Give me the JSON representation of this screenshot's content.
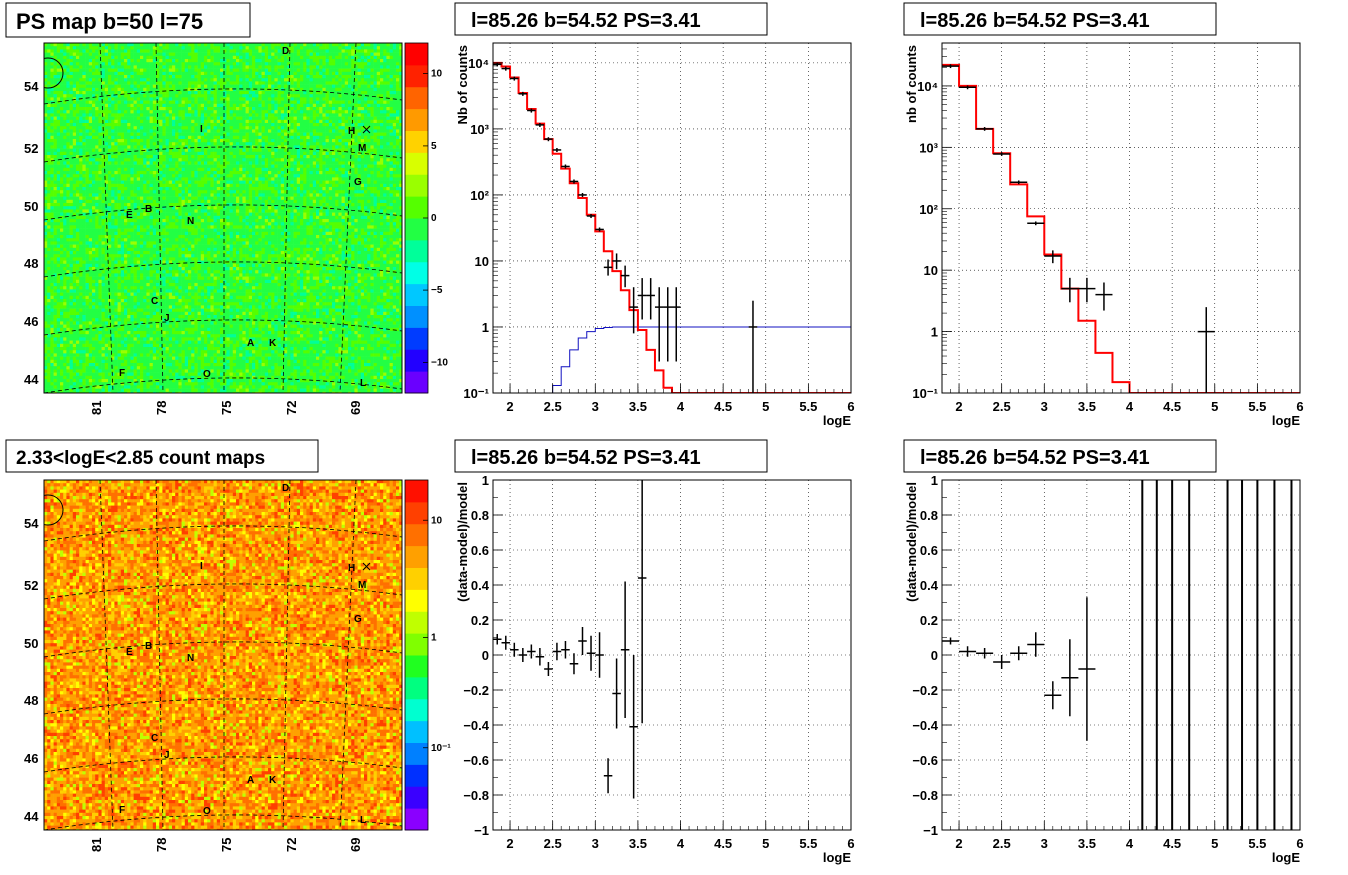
{
  "maps": [
    {
      "title": "PS map b=50 l=75",
      "kind": "ps",
      "colorbar_ticks": [
        {
          "label": "10",
          "frac": 0.913
        },
        {
          "label": "5",
          "frac": 0.706
        },
        {
          "label": "0",
          "frac": 0.5
        },
        {
          "label": "−5",
          "frac": 0.294
        },
        {
          "label": "−10",
          "frac": 0.087
        }
      ],
      "colors": [
        "#6a00ff",
        "#2200ff",
        "#003cff",
        "#0090ff",
        "#00c8ff",
        "#00ffe6",
        "#00ff9a",
        "#22ff44",
        "#55ff00",
        "#9aff00",
        "#d8ff00",
        "#ffd200",
        "#ff9a00",
        "#ff6400",
        "#ff2200",
        "#ff0000"
      ]
    },
    {
      "title": "2.33<logE<2.85 count maps",
      "kind": "counts",
      "colorbar_ticks": [
        {
          "label": "10",
          "frac": 0.885
        },
        {
          "label": "1",
          "frac": 0.55
        },
        {
          "label": "10⁻¹",
          "frac": 0.235
        }
      ],
      "colors": [
        "#8a00ff",
        "#3a00ff",
        "#0030ff",
        "#0080ff",
        "#00c0ff",
        "#00ffd0",
        "#00ff80",
        "#20ff20",
        "#80ff00",
        "#c0ff00",
        "#ffff00",
        "#ffd000",
        "#ffa000",
        "#ff7000",
        "#ff4000",
        "#ff1000"
      ]
    }
  ],
  "map_axes": {
    "lat_labels": [
      "54",
      "52",
      "50",
      "48",
      "46",
      "44"
    ],
    "lon_labels": [
      "81",
      "78",
      "75",
      "72",
      "69"
    ]
  },
  "sources": [
    "D",
    "I",
    "H",
    "M",
    "G",
    "E",
    "B",
    "N",
    "C",
    "J",
    "A",
    "K",
    "F",
    "O",
    "L"
  ],
  "chart_data": [
    {
      "type": "step",
      "title": "l=85.26 b=54.52 PS=3.41",
      "xlabel": "logE",
      "ylabel": "Nb of counts",
      "yscale": "log",
      "xlim": [
        1.8,
        6
      ],
      "ylim": [
        0.1,
        20000
      ],
      "xticks": [
        "2",
        "2.5",
        "3",
        "3.5",
        "4",
        "4.5",
        "5",
        "5.5",
        "6"
      ],
      "yticks": [
        "10⁴",
        "10³",
        "10²",
        "10",
        "1",
        "10⁻¹"
      ],
      "bin_edges": [
        1.8,
        1.9,
        2.0,
        2.1,
        2.2,
        2.3,
        2.4,
        2.5,
        2.6,
        2.7,
        2.8,
        2.9,
        3.0,
        3.1,
        3.2,
        3.3,
        3.4,
        3.5,
        3.6,
        3.7,
        3.8,
        3.9,
        4.0,
        4.1,
        4.2,
        4.3,
        4.4,
        4.5,
        4.6,
        4.7,
        4.8,
        4.9,
        5.0,
        5.1,
        5.2,
        5.3,
        5.4,
        5.5,
        5.6,
        5.7,
        5.8,
        5.9,
        6.0
      ],
      "model": [
        10000,
        8800,
        6000,
        3500,
        2000,
        1200,
        700,
        420,
        250,
        150,
        90,
        50,
        28,
        14,
        7,
        3.6,
        1.8,
        0.9,
        0.45,
        0.22,
        0.12,
        0.1,
        0.1,
        0.1,
        0.1,
        0.1,
        0.1,
        0.1,
        0.1,
        0.1,
        0.1,
        0.1,
        0.1,
        0.1,
        0.1,
        0.1,
        0.1,
        0.1,
        0.1,
        0.1,
        0.1,
        0.1
      ],
      "model2": [
        0.1,
        0.1,
        0.1,
        0.1,
        0.1,
        0.1,
        0.1,
        0.13,
        0.25,
        0.45,
        0.68,
        0.85,
        0.95,
        0.98,
        1,
        1,
        1,
        1,
        1,
        1,
        1,
        1,
        1,
        1,
        1,
        1,
        1,
        1,
        1,
        1,
        1,
        1,
        1,
        1,
        1,
        1,
        1,
        1,
        1,
        1,
        1,
        1
      ],
      "points": [
        {
          "x": 1.85,
          "y": 9500,
          "dx": 0.05
        },
        {
          "x": 1.95,
          "y": 8200,
          "dx": 0.05
        },
        {
          "x": 2.05,
          "y": 5800,
          "dx": 0.05
        },
        {
          "x": 2.15,
          "y": 3400,
          "dx": 0.05
        },
        {
          "x": 2.25,
          "y": 1900,
          "dx": 0.05
        },
        {
          "x": 2.35,
          "y": 1150,
          "dx": 0.05
        },
        {
          "x": 2.45,
          "y": 700,
          "dx": 0.05
        },
        {
          "x": 2.55,
          "y": 480,
          "dx": 0.05
        },
        {
          "x": 2.65,
          "y": 270,
          "dx": 0.05
        },
        {
          "x": 2.75,
          "y": 160,
          "dx": 0.05
        },
        {
          "x": 2.85,
          "y": 100,
          "dx": 0.05
        },
        {
          "x": 2.95,
          "y": 48,
          "dx": 0.05
        },
        {
          "x": 3.05,
          "y": 30,
          "dx": 0.05
        },
        {
          "x": 3.15,
          "y": 8,
          "dx": 0.05,
          "lo": 6,
          "hi": 10.5
        },
        {
          "x": 3.25,
          "y": 10,
          "dx": 0.05,
          "lo": 7.5,
          "hi": 13
        },
        {
          "x": 3.35,
          "y": 6,
          "dx": 0.05,
          "lo": 4,
          "hi": 8.5
        },
        {
          "x": 3.45,
          "y": 2,
          "dx": 0.05,
          "lo": 0.8,
          "hi": 4
        },
        {
          "x": 3.55,
          "y": 3,
          "dx": 0.05,
          "lo": 1.3,
          "hi": 5.5
        },
        {
          "x": 3.65,
          "y": 3,
          "dx": 0.05,
          "lo": 1.3,
          "hi": 5.5
        },
        {
          "x": 3.75,
          "y": 2,
          "dx": 0.05,
          "lo": 0.3,
          "hi": 4
        },
        {
          "x": 3.85,
          "y": 2,
          "dx": 0.05,
          "lo": 0.3,
          "hi": 4
        },
        {
          "x": 3.95,
          "y": 2,
          "dx": 0.05,
          "lo": 0.3,
          "hi": 4
        },
        {
          "x": 4.85,
          "y": 1,
          "dx": 0.05,
          "lo": 0.1,
          "hi": 2.5
        }
      ]
    },
    {
      "type": "step",
      "title": "l=85.26 b=54.52 PS=3.41",
      "xlabel": "logE",
      "ylabel": "nb of counts",
      "yscale": "log",
      "xlim": [
        1.8,
        6
      ],
      "ylim": [
        0.1,
        50000
      ],
      "xticks": [
        "2",
        "2.5",
        "3",
        "3.5",
        "4",
        "4.5",
        "5",
        "5.5",
        "6"
      ],
      "yticks": [
        "10⁴",
        "10³",
        "10²",
        "10",
        "1",
        "10⁻¹"
      ],
      "bin_edges": [
        1.8,
        2.0,
        2.2,
        2.4,
        2.6,
        2.8,
        3.0,
        3.2,
        3.4,
        3.6,
        3.8,
        4.0,
        4.2,
        4.4,
        4.6,
        4.8,
        5.0,
        5.2,
        5.4,
        5.6,
        5.8,
        6.0
      ],
      "model": [
        22000,
        10000,
        2000,
        800,
        250,
        75,
        18,
        5,
        1.5,
        0.45,
        0.15,
        0.1,
        0.1,
        0.1,
        0.1,
        0.1,
        0.1,
        0.1,
        0.1,
        0.1,
        0.1
      ],
      "points": [
        {
          "x": 1.9,
          "y": 21000,
          "dx": 0.1
        },
        {
          "x": 2.1,
          "y": 9500,
          "dx": 0.1
        },
        {
          "x": 2.3,
          "y": 2000,
          "dx": 0.1
        },
        {
          "x": 2.5,
          "y": 780,
          "dx": 0.1
        },
        {
          "x": 2.7,
          "y": 270,
          "dx": 0.1
        },
        {
          "x": 2.9,
          "y": 58,
          "dx": 0.1
        },
        {
          "x": 3.1,
          "y": 17,
          "dx": 0.1,
          "lo": 13,
          "hi": 21
        },
        {
          "x": 3.3,
          "y": 5,
          "dx": 0.1,
          "lo": 3,
          "hi": 7.5
        },
        {
          "x": 3.5,
          "y": 5,
          "dx": 0.1,
          "lo": 3,
          "hi": 7.5
        },
        {
          "x": 3.7,
          "y": 4,
          "dx": 0.1,
          "lo": 2.2,
          "hi": 6.3
        },
        {
          "x": 4.9,
          "y": 1,
          "dx": 0.1,
          "lo": 0.1,
          "hi": 2.5
        }
      ]
    },
    {
      "type": "scatter",
      "title": "l=85.26 b=54.52 PS=3.41",
      "xlabel": "logE",
      "ylabel": "(data-model)/model",
      "xlim": [
        1.8,
        6
      ],
      "ylim": [
        -1,
        1
      ],
      "xticks": [
        "2",
        "2.5",
        "3",
        "3.5",
        "4",
        "4.5",
        "5",
        "5.5",
        "6"
      ],
      "yticks": [
        "1",
        "0.8",
        "0.6",
        "0.4",
        "0.2",
        "0",
        "−0.2",
        "−0.4",
        "−0.6",
        "−0.8",
        "−1"
      ],
      "points": [
        {
          "x": 1.85,
          "y": 0.09,
          "dx": 0.05,
          "dy": 0.03
        },
        {
          "x": 1.95,
          "y": 0.07,
          "dx": 0.05,
          "dy": 0.04
        },
        {
          "x": 2.05,
          "y": 0.03,
          "dx": 0.05,
          "dy": 0.04
        },
        {
          "x": 2.15,
          "y": 0.0,
          "dx": 0.05,
          "dy": 0.04
        },
        {
          "x": 2.25,
          "y": 0.02,
          "dx": 0.05,
          "dy": 0.04
        },
        {
          "x": 2.35,
          "y": -0.01,
          "dx": 0.05,
          "dy": 0.05
        },
        {
          "x": 2.45,
          "y": -0.08,
          "dx": 0.05,
          "dy": 0.04
        },
        {
          "x": 2.55,
          "y": 0.02,
          "dx": 0.05,
          "dy": 0.05
        },
        {
          "x": 2.65,
          "y": 0.03,
          "dx": 0.05,
          "dy": 0.05
        },
        {
          "x": 2.75,
          "y": -0.05,
          "dx": 0.05,
          "dy": 0.06
        },
        {
          "x": 2.85,
          "y": 0.08,
          "dx": 0.05,
          "dy": 0.08
        },
        {
          "x": 2.95,
          "y": 0.01,
          "dx": 0.05,
          "dy": 0.1
        },
        {
          "x": 3.05,
          "y": 0.0,
          "dx": 0.05,
          "dy": 0.13
        },
        {
          "x": 3.15,
          "y": -0.69,
          "dx": 0.05,
          "dy": 0.1
        },
        {
          "x": 3.25,
          "y": -0.22,
          "dx": 0.05,
          "dy": 0.2
        },
        {
          "x": 3.35,
          "y": 0.03,
          "dx": 0.05,
          "dy": 0.39
        },
        {
          "x": 3.45,
          "y": -0.41,
          "dx": 0.05,
          "dy": 0.41
        },
        {
          "x": 3.55,
          "y": 0.44,
          "dx": 0.05,
          "dy": 0.83
        }
      ]
    },
    {
      "type": "scatter",
      "title": "l=85.26 b=54.52 PS=3.41",
      "xlabel": "logE",
      "ylabel": "(data-model)/model",
      "xlim": [
        1.8,
        6
      ],
      "ylim": [
        -1,
        1
      ],
      "xticks": [
        "2",
        "2.5",
        "3",
        "3.5",
        "4",
        "4.5",
        "5",
        "5.5",
        "6"
      ],
      "yticks": [
        "1",
        "0.8",
        "0.6",
        "0.4",
        "0.2",
        "0",
        "−0.2",
        "−0.4",
        "−0.6",
        "−0.8",
        "−1"
      ],
      "points": [
        {
          "x": 1.9,
          "y": 0.08,
          "dx": 0.1,
          "dy": 0.02
        },
        {
          "x": 2.1,
          "y": 0.02,
          "dx": 0.1,
          "dy": 0.03
        },
        {
          "x": 2.3,
          "y": 0.01,
          "dx": 0.1,
          "dy": 0.03
        },
        {
          "x": 2.5,
          "y": -0.04,
          "dx": 0.1,
          "dy": 0.04
        },
        {
          "x": 2.7,
          "y": 0.01,
          "dx": 0.1,
          "dy": 0.04
        },
        {
          "x": 2.9,
          "y": 0.06,
          "dx": 0.1,
          "dy": 0.07
        },
        {
          "x": 3.1,
          "y": -0.23,
          "dx": 0.1,
          "dy": 0.08
        },
        {
          "x": 3.3,
          "y": -0.13,
          "dx": 0.1,
          "dy": 0.22
        },
        {
          "x": 3.5,
          "y": -0.08,
          "dx": 0.1,
          "dy": 0.41
        },
        {
          "x": 4.15,
          "y": 0,
          "full": true
        },
        {
          "x": 4.32,
          "y": 0,
          "full": true
        },
        {
          "x": 4.5,
          "y": 0,
          "full": true
        },
        {
          "x": 4.7,
          "y": 0,
          "full": true
        },
        {
          "x": 5.15,
          "y": 0,
          "full": true
        },
        {
          "x": 5.32,
          "y": 0,
          "full": true
        },
        {
          "x": 5.5,
          "y": 0,
          "full": true
        },
        {
          "x": 5.7,
          "y": 0,
          "full": true
        },
        {
          "x": 5.9,
          "y": 0,
          "full": true
        }
      ]
    }
  ]
}
